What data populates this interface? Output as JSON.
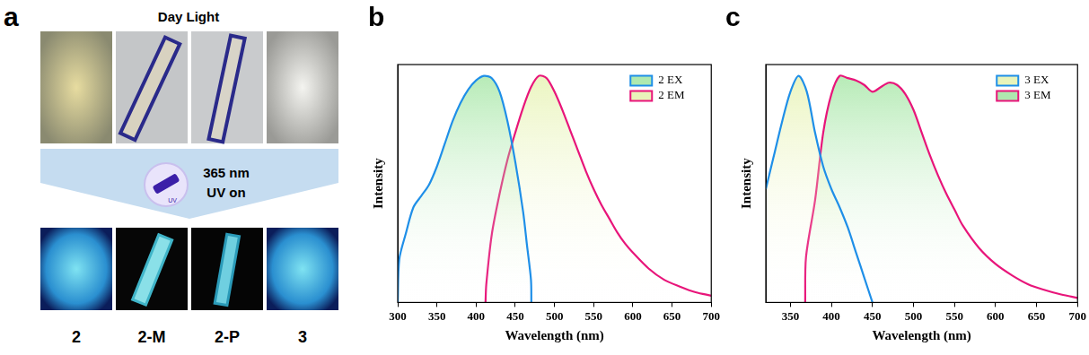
{
  "panel_labels": [
    "a",
    "b",
    "c"
  ],
  "photo_panel": {
    "top_label": "Day Light",
    "icon_label": "UV",
    "uv_label": [
      "365 nm",
      "UV on"
    ],
    "samples": [
      "2",
      "2-M",
      "2-P",
      "3"
    ]
  },
  "chart_data": [
    {
      "type": "line",
      "x_label": "Wavelength (nm)",
      "y_label": "Intensity",
      "xlim": [
        300,
        700
      ],
      "xticks": [
        300,
        350,
        400,
        450,
        500,
        550,
        600,
        650,
        700
      ],
      "ylim": [
        0,
        1.05
      ],
      "yticks": [],
      "tick_labels": "x",
      "grid": false,
      "legend": "upper right",
      "series": [
        {
          "name": "2 EX",
          "color": "#1f8fe8",
          "x": [
            300,
            302,
            310,
            320,
            330,
            340,
            350,
            360,
            370,
            380,
            390,
            400,
            410,
            420,
            430,
            440,
            450,
            460,
            465,
            470,
            470.5
          ],
          "values": [
            0,
            0.19,
            0.3,
            0.42,
            0.47,
            0.52,
            0.6,
            0.7,
            0.8,
            0.88,
            0.94,
            0.98,
            1.0,
            0.99,
            0.93,
            0.8,
            0.62,
            0.4,
            0.25,
            0.1,
            0
          ]
        },
        {
          "name": "2 EM",
          "color": "#e8157a",
          "x": [
            412,
            413,
            420,
            430,
            440,
            450,
            460,
            470,
            480,
            490,
            500,
            510,
            520,
            530,
            540,
            550,
            560,
            570,
            580,
            590,
            600,
            620,
            640,
            660,
            680,
            700
          ],
          "values": [
            0,
            0.08,
            0.3,
            0.48,
            0.63,
            0.75,
            0.86,
            0.95,
            1.0,
            0.99,
            0.93,
            0.85,
            0.76,
            0.67,
            0.58,
            0.5,
            0.43,
            0.37,
            0.31,
            0.26,
            0.22,
            0.15,
            0.1,
            0.07,
            0.045,
            0.03
          ]
        }
      ]
    },
    {
      "type": "line",
      "x_label": "Wavelength (nm)",
      "y_label": "Intensity",
      "xlim": [
        320,
        700
      ],
      "xticks": [
        350,
        400,
        450,
        500,
        550,
        600,
        650,
        700
      ],
      "ylim": [
        0,
        1.05
      ],
      "yticks": [],
      "tick_labels": "x",
      "grid": false,
      "legend": "upper right",
      "series": [
        {
          "name": "3 EX",
          "color": "#1f8fe8",
          "x": [
            320,
            330,
            340,
            350,
            360,
            370,
            380,
            390,
            400,
            410,
            420,
            430,
            440,
            450
          ],
          "values": [
            0.5,
            0.65,
            0.8,
            0.93,
            1.0,
            0.93,
            0.75,
            0.6,
            0.5,
            0.42,
            0.33,
            0.22,
            0.11,
            0
          ]
        },
        {
          "name": "3 EM",
          "color": "#e8157a",
          "x": [
            368,
            369,
            380,
            390,
            400,
            410,
            420,
            430,
            440,
            450,
            460,
            470,
            480,
            490,
            500,
            510,
            520,
            530,
            540,
            550,
            560,
            580,
            600,
            620,
            640,
            660,
            680,
            700
          ],
          "values": [
            0,
            0.2,
            0.45,
            0.75,
            0.92,
            1.0,
            0.99,
            0.98,
            0.96,
            0.93,
            0.95,
            0.97,
            0.96,
            0.92,
            0.85,
            0.75,
            0.65,
            0.56,
            0.48,
            0.41,
            0.34,
            0.24,
            0.17,
            0.12,
            0.08,
            0.055,
            0.035,
            0.02
          ]
        }
      ]
    }
  ]
}
